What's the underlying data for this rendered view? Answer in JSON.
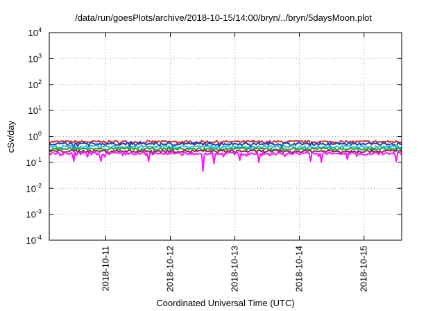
{
  "chart_data": {
    "type": "line",
    "title": "/data/run/goesPlots/archive/2018-10-15/14:00/bryn/../bryn/5daysMoon.plot",
    "xlabel": "Coordinated Universal Time (UTC)",
    "ylabel": "cSv/day",
    "yscale": "log",
    "ylim": [
      0.0001,
      10000
    ],
    "y_ticks": [
      {
        "exp": "-4",
        "value": 0.0001
      },
      {
        "exp": "-3",
        "value": 0.001
      },
      {
        "exp": "-2",
        "value": 0.01
      },
      {
        "exp": "-1",
        "value": 0.1
      },
      {
        "exp": "0",
        "value": 1
      },
      {
        "exp": "1",
        "value": 10
      },
      {
        "exp": "2",
        "value": 100
      },
      {
        "exp": "3",
        "value": 1000
      },
      {
        "exp": "4",
        "value": 10000
      }
    ],
    "x_ticks": [
      "2018-10-11",
      "2018-10-12",
      "2018-10-13",
      "2018-10-14",
      "2018-10-15"
    ],
    "xlim": [
      "2018-10-10 03:00",
      "2018-10-15 14:00"
    ],
    "grid": true,
    "series": [
      {
        "color": "#d62728",
        "level": 0.62,
        "dips": []
      },
      {
        "color": "#1f3fbf",
        "level": 0.52,
        "dips": [
          {
            "date": "2018-10-10 12:00",
            "value": 0.3
          },
          {
            "date": "2018-10-15 12:00",
            "value": 0.3
          }
        ]
      },
      {
        "color": "#17c3d6",
        "level": 0.4,
        "dips": [
          {
            "date": "2018-10-10 12:00",
            "value": 0.25
          },
          {
            "date": "2018-10-14 22:00",
            "value": 0.28
          }
        ]
      },
      {
        "color": "#2ca02c",
        "level": 0.33,
        "dips": []
      },
      {
        "color": "#8b2252",
        "level": 0.27,
        "dips": []
      },
      {
        "color": "#ff10ff",
        "level": 0.22,
        "dips": [
          {
            "date": "2018-10-10 12:00",
            "value": 0.11
          },
          {
            "date": "2018-10-10 22:00",
            "value": 0.11
          },
          {
            "date": "2018-10-11 16:00",
            "value": 0.11
          },
          {
            "date": "2018-10-12 12:00",
            "value": 0.045
          },
          {
            "date": "2018-10-12 16:00",
            "value": 0.09
          },
          {
            "date": "2018-10-13 02:00",
            "value": 0.12
          },
          {
            "date": "2018-10-13 09:00",
            "value": 0.1
          },
          {
            "date": "2018-10-14 04:00",
            "value": 0.11
          },
          {
            "date": "2018-10-14 08:00",
            "value": 0.1
          },
          {
            "date": "2018-10-14 18:00",
            "value": 0.13
          },
          {
            "date": "2018-10-15 12:00",
            "value": 0.11
          }
        ]
      }
    ]
  }
}
